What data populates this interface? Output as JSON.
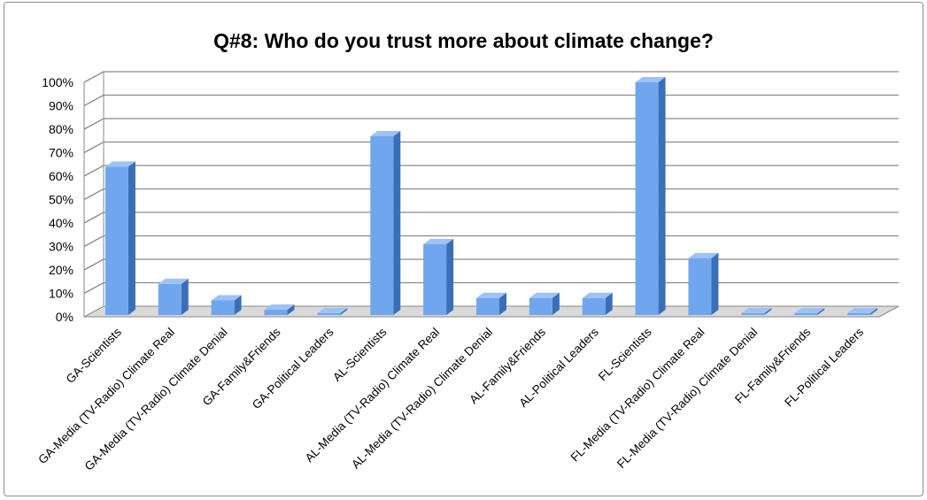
{
  "chart_data": {
    "type": "bar",
    "title": "Q#8: Who do you trust more about climate change?",
    "xlabel": "",
    "ylabel": "",
    "ylim": [
      0,
      100
    ],
    "y_ticks": [
      "0%",
      "10%",
      "20%",
      "30%",
      "40%",
      "50%",
      "60%",
      "70%",
      "80%",
      "90%",
      "100%"
    ],
    "grid": true,
    "style": "3d-column",
    "colors": {
      "bar_front": "#6fa6ee",
      "bar_side": "#3a6fb8",
      "bar_top": "#9dc3f5",
      "grid": "#8a8a8a",
      "floor": "#d9d9d9"
    },
    "categories": [
      "GA-Scientists",
      "GA-Media (TV-Radio) Climate Real",
      "GA-Media (TV-Radio) Climate Denial",
      "GA-Family&Friends",
      "GA-Political Leaders",
      "AL-Scientists",
      "AL-Media (TV-Radio) Climate Real",
      "AL-Media (TV-Radio) Climate Denial",
      "AL-Family&Friends",
      "AL-Political Leaders",
      "FL-Scientists",
      "FL-Media (TV-Radio) Climate Real",
      "FL-Media (TV-Radio) Climate Denial",
      "FL-Family&Friends",
      "FL-Political Leaders"
    ],
    "values": [
      64,
      14,
      7,
      3,
      0,
      77,
      31,
      8,
      8,
      8,
      100,
      25,
      0,
      0,
      0
    ]
  }
}
